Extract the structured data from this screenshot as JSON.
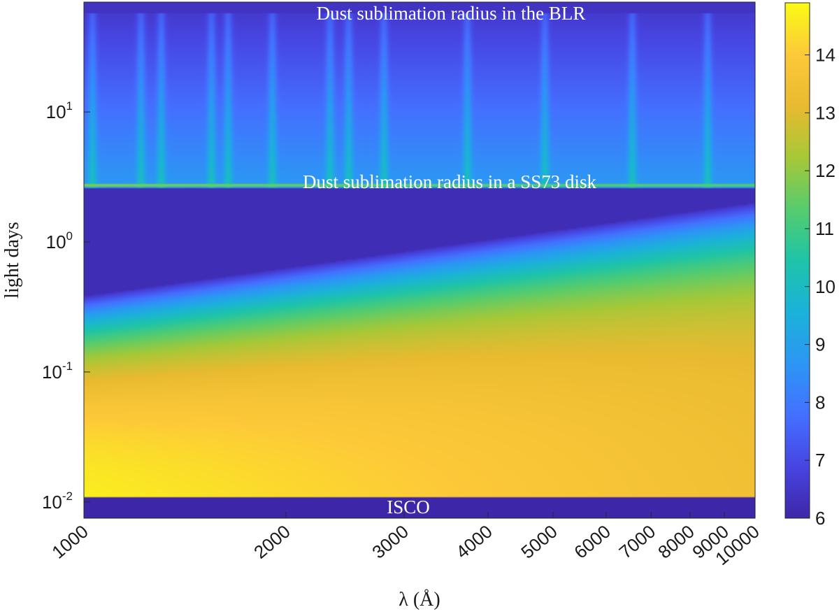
{
  "chart_data": {
    "type": "heatmap",
    "title": "",
    "xlabel": "λ (Å)",
    "ylabel": "light days",
    "x_scale": "log",
    "y_scale": "log",
    "xlim": [
      1000,
      10000
    ],
    "ylim": [
      0.0075,
      70
    ],
    "x_ticks": [
      {
        "value": 1000,
        "label": "1000"
      },
      {
        "value": 2000,
        "label": "2000"
      },
      {
        "value": 3000,
        "label": "3000"
      },
      {
        "value": 4000,
        "label": "4000"
      },
      {
        "value": 5000,
        "label": "5000"
      },
      {
        "value": 6000,
        "label": "6000"
      },
      {
        "value": 7000,
        "label": "7000"
      },
      {
        "value": 8000,
        "label": "8000"
      },
      {
        "value": 9000,
        "label": "9000"
      },
      {
        "value": 10000,
        "label": "10000"
      }
    ],
    "y_ticks": [
      {
        "value": 0.01,
        "base": "10",
        "exp": "-2"
      },
      {
        "value": 0.1,
        "base": "10",
        "exp": "-1"
      },
      {
        "value": 1,
        "base": "10",
        "exp": "0"
      },
      {
        "value": 10,
        "base": "10",
        "exp": "1"
      }
    ],
    "colorbar": {
      "range": [
        6,
        14.9
      ],
      "ticks": [
        "6",
        "7",
        "8",
        "9",
        "10",
        "11",
        "12",
        "13",
        "14"
      ],
      "colormap": "parula"
    },
    "regions": {
      "isco_radius": 0.0108,
      "ss73_dust_radius": 2.6,
      "blr_outer_radius": 58
    },
    "emission_lines_angstrom": [
      1030,
      1216,
      1304,
      1549,
      1640,
      1909,
      2326,
      2480,
      2800,
      3727,
      4861,
      6563,
      8500
    ],
    "annotations": [
      {
        "text": "Dust sublimation radius in the BLR",
        "x": 2450,
        "y": 58
      },
      {
        "text": "Dust sublimation radius in a SS73 disk",
        "x": 2450,
        "y": 2.95
      },
      {
        "text": "ISCO",
        "x": 2450,
        "y": 0.0083
      }
    ]
  }
}
